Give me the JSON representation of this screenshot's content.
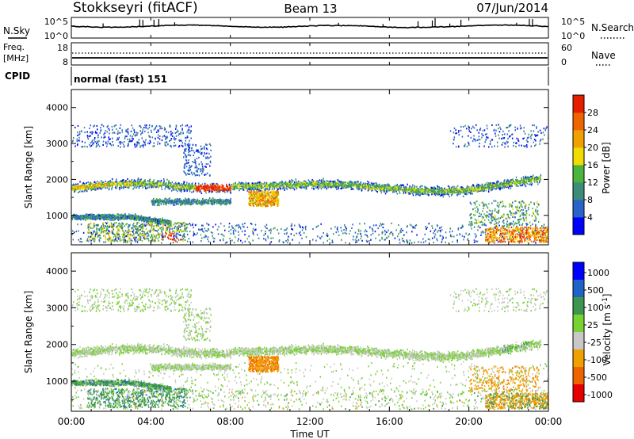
{
  "header": {
    "station": "Stokkseyri (fitACF)",
    "beam": "Beam 13",
    "date": "07/Jun/2014"
  },
  "noise_panel": {
    "left_label": "N.Sky",
    "right_label": "N.Search",
    "tick_top": "10^5",
    "tick_bottom": "10^0"
  },
  "freq_panel": {
    "left_label_1": "Freq.",
    "left_label_2": "[MHz]",
    "right_label": "Nave",
    "left_tick_top": "18",
    "left_tick_bottom": "8",
    "right_tick_top": "60",
    "right_tick_bottom": "0"
  },
  "cpid": {
    "label": "CPID",
    "value": "normal (fast) 151"
  },
  "colors": {
    "power_scale": [
      "#0000ff",
      "#2a64c8",
      "#3c8c78",
      "#4bb43c",
      "#f0dc00",
      "#f0a000",
      "#f06400",
      "#e61e00"
    ],
    "velocity_scale": [
      "#0000ff",
      "#1e64c8",
      "#3c9650",
      "#78d232",
      "#c8c8c8",
      "#f0a000",
      "#f06400",
      "#e60000"
    ]
  },
  "chart_data": [
    {
      "type": "heatmap",
      "title": "Power",
      "xlabel": "Time UT",
      "ylabel": "Slant Range [km]",
      "x_ticks": [
        "00:00",
        "04:00",
        "08:00",
        "12:00",
        "16:00",
        "20:00",
        "00:00"
      ],
      "x_range_hours": [
        0,
        24
      ],
      "y_ticks": [
        1000,
        2000,
        3000,
        4000
      ],
      "y_range_km": [
        180,
        4500
      ],
      "colorbar": {
        "label": "Power [dB]",
        "ticks": [
          4,
          8,
          12,
          16,
          20,
          24,
          28
        ],
        "range": [
          0,
          30
        ]
      },
      "features": [
        {
          "name": "main band",
          "t_start": 0,
          "t_end": 23,
          "range_km": [
            1650,
            2050
          ],
          "power_db": [
            4,
            20
          ]
        },
        {
          "name": "enhancement 06-08 UT",
          "t_start": 6.2,
          "t_end": 8.0,
          "range_km": [
            1700,
            1850
          ],
          "power_db": 28
        },
        {
          "name": "enhancement 09-10 UT",
          "t_start": 9.0,
          "t_end": 10.2,
          "range_km": [
            1250,
            1600
          ],
          "power_db": 24
        },
        {
          "name": "near-range echoes 04-05 UT",
          "t_start": 4.5,
          "t_end": 5.5,
          "range_km": [
            300,
            500
          ],
          "power_db": 26
        },
        {
          "name": "near-range echoes 21-24 UT",
          "t_start": 21.0,
          "t_end": 24.0,
          "range_km": [
            250,
            500
          ],
          "power_db": 24
        }
      ]
    },
    {
      "type": "heatmap",
      "title": "Velocity",
      "xlabel": "Time UT",
      "ylabel": "Slant Range [km]",
      "x_ticks": [
        "00:00",
        "04:00",
        "08:00",
        "12:00",
        "16:00",
        "20:00",
        "00:00"
      ],
      "x_range_hours": [
        0,
        24
      ],
      "y_ticks": [
        1000,
        2000,
        3000,
        4000
      ],
      "y_range_km": [
        180,
        4500
      ],
      "colorbar": {
        "label": "Velocity [m s^-1]",
        "ticks": [
          "1000",
          "500",
          "100",
          "25",
          "-25",
          "-100",
          "-500",
          "-1000"
        ]
      },
      "features": [
        {
          "name": "main band (ground scatter)",
          "t_start": 0,
          "t_end": 23,
          "range_km": [
            1650,
            2050
          ],
          "velocity_ms": [
            -25,
            25
          ]
        },
        {
          "name": "negative-velocity patch 09-10 UT",
          "t_start": 9.0,
          "t_end": 10.5,
          "range_km": [
            1250,
            1700
          ],
          "velocity_ms": -100
        },
        {
          "name": "positive-velocity echoes 00-04 UT",
          "t_start": 0.0,
          "t_end": 4.5,
          "range_km": [
            500,
            1300
          ],
          "velocity_ms": 100
        }
      ]
    }
  ]
}
